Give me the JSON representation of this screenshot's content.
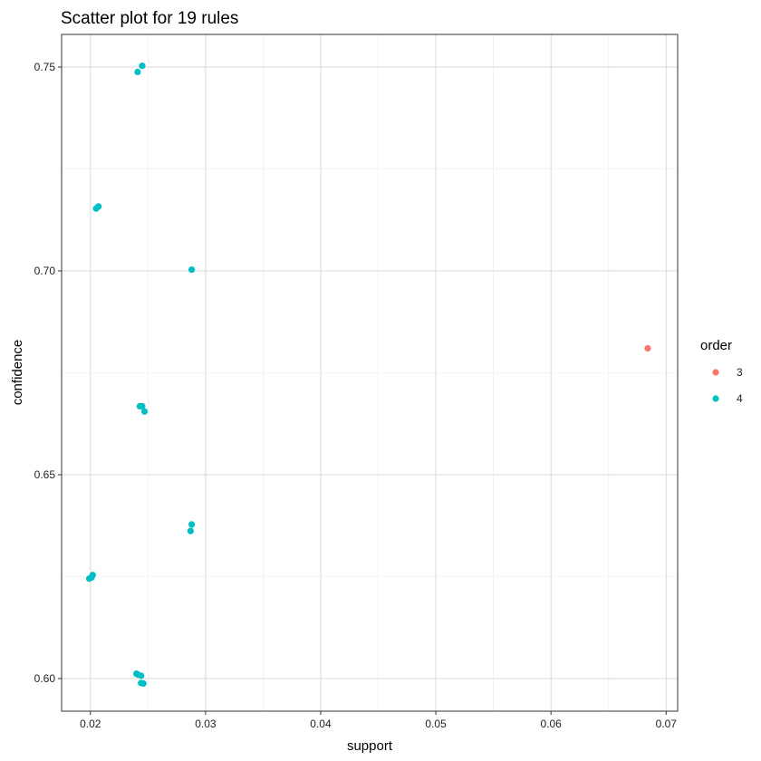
{
  "chart_data": {
    "type": "scatter",
    "title": "Scatter plot for 19 rules",
    "xlabel": "support",
    "ylabel": "confidence",
    "xlim": [
      0.0175,
      0.071
    ],
    "ylim": [
      0.592,
      0.758
    ],
    "x_ticks": [
      0.02,
      0.03,
      0.04,
      0.05,
      0.06,
      0.07
    ],
    "x_tick_labels": [
      "0.02",
      "0.03",
      "0.04",
      "0.05",
      "0.06",
      "0.07"
    ],
    "y_ticks": [
      0.6,
      0.65,
      0.7,
      0.75
    ],
    "y_tick_labels": [
      "0.60",
      "0.65",
      "0.70",
      "0.75"
    ],
    "grid": true,
    "legend": {
      "title": "order",
      "placement": "right",
      "entries": [
        {
          "label": "3",
          "color": "#F8766D"
        },
        {
          "label": "4",
          "color": "#00BFC4"
        }
      ]
    },
    "series": [
      {
        "name": "3",
        "color": "#F8766D",
        "points": [
          {
            "x": 0.0684,
            "y": 0.681
          }
        ]
      },
      {
        "name": "4",
        "color": "#00BFC4",
        "points": [
          {
            "x": 0.0245,
            "y": 0.7503
          },
          {
            "x": 0.0241,
            "y": 0.7488
          },
          {
            "x": 0.0207,
            "y": 0.7158
          },
          {
            "x": 0.0205,
            "y": 0.7153
          },
          {
            "x": 0.0288,
            "y": 0.7003
          },
          {
            "x": 0.0243,
            "y": 0.6668
          },
          {
            "x": 0.0245,
            "y": 0.6668
          },
          {
            "x": 0.0247,
            "y": 0.6655
          },
          {
            "x": 0.0288,
            "y": 0.6378
          },
          {
            "x": 0.0287,
            "y": 0.6362
          },
          {
            "x": 0.0202,
            "y": 0.6254
          },
          {
            "x": 0.0201,
            "y": 0.6248
          },
          {
            "x": 0.0199,
            "y": 0.6245
          },
          {
            "x": 0.024,
            "y": 0.6012
          },
          {
            "x": 0.0241,
            "y": 0.601
          },
          {
            "x": 0.0244,
            "y": 0.6007
          },
          {
            "x": 0.0244,
            "y": 0.5989
          },
          {
            "x": 0.0246,
            "y": 0.5988
          }
        ]
      }
    ]
  }
}
